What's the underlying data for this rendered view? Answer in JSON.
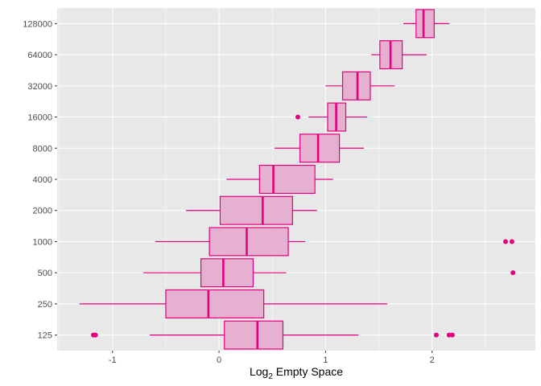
{
  "chart_data": {
    "type": "boxplot",
    "orientation": "horizontal",
    "xlabel": "Log",
    "xlabel_subscript": "2",
    "xlabel_suffix": " Empty Space",
    "ylabel": "",
    "xlim": [
      -1.52,
      2.97
    ],
    "x_ticks": [
      -1,
      0,
      1,
      2
    ],
    "grid": true,
    "colors": {
      "panel": "#e8e8e8",
      "grid": "#ffffff",
      "box_fill": "#e6b0d0",
      "box_stroke": "#e5007e"
    },
    "categories": [
      "125",
      "250",
      "500",
      "1000",
      "2000",
      "4000",
      "8000",
      "16000",
      "32000",
      "64000",
      "128000"
    ],
    "boxes": [
      {
        "category": "125",
        "whisker_low": -0.65,
        "q1": 0.05,
        "median": 0.36,
        "q3": 0.6,
        "whisker_high": 1.31,
        "outliers": [
          -1.18,
          -1.16,
          2.04,
          2.16,
          2.19
        ]
      },
      {
        "category": "250",
        "whisker_low": -1.31,
        "q1": -0.5,
        "median": -0.1,
        "q3": 0.42,
        "whisker_high": 1.58,
        "outliers": []
      },
      {
        "category": "500",
        "whisker_low": -0.71,
        "q1": -0.17,
        "median": 0.04,
        "q3": 0.32,
        "whisker_high": 0.63,
        "outliers": [
          2.76
        ]
      },
      {
        "category": "1000",
        "whisker_low": -0.6,
        "q1": -0.09,
        "median": 0.26,
        "q3": 0.65,
        "whisker_high": 0.81,
        "outliers": [
          2.69,
          2.75
        ]
      },
      {
        "category": "2000",
        "whisker_low": -0.31,
        "q1": 0.01,
        "median": 0.41,
        "q3": 0.69,
        "whisker_high": 0.92,
        "outliers": []
      },
      {
        "category": "4000",
        "whisker_low": 0.07,
        "q1": 0.38,
        "median": 0.51,
        "q3": 0.9,
        "whisker_high": 1.07,
        "outliers": []
      },
      {
        "category": "8000",
        "whisker_low": 0.52,
        "q1": 0.76,
        "median": 0.93,
        "q3": 1.13,
        "whisker_high": 1.36,
        "outliers": []
      },
      {
        "category": "16000",
        "whisker_low": 0.84,
        "q1": 1.02,
        "median": 1.1,
        "q3": 1.19,
        "whisker_high": 1.39,
        "outliers": [
          0.74
        ]
      },
      {
        "category": "32000",
        "whisker_low": 1.0,
        "q1": 1.16,
        "median": 1.3,
        "q3": 1.42,
        "whisker_high": 1.65,
        "outliers": []
      },
      {
        "category": "64000",
        "whisker_low": 1.43,
        "q1": 1.51,
        "median": 1.61,
        "q3": 1.72,
        "whisker_high": 1.95,
        "outliers": []
      },
      {
        "category": "128000",
        "whisker_low": 1.73,
        "q1": 1.85,
        "median": 1.92,
        "q3": 2.02,
        "whisker_high": 2.16,
        "outliers": []
      }
    ]
  }
}
